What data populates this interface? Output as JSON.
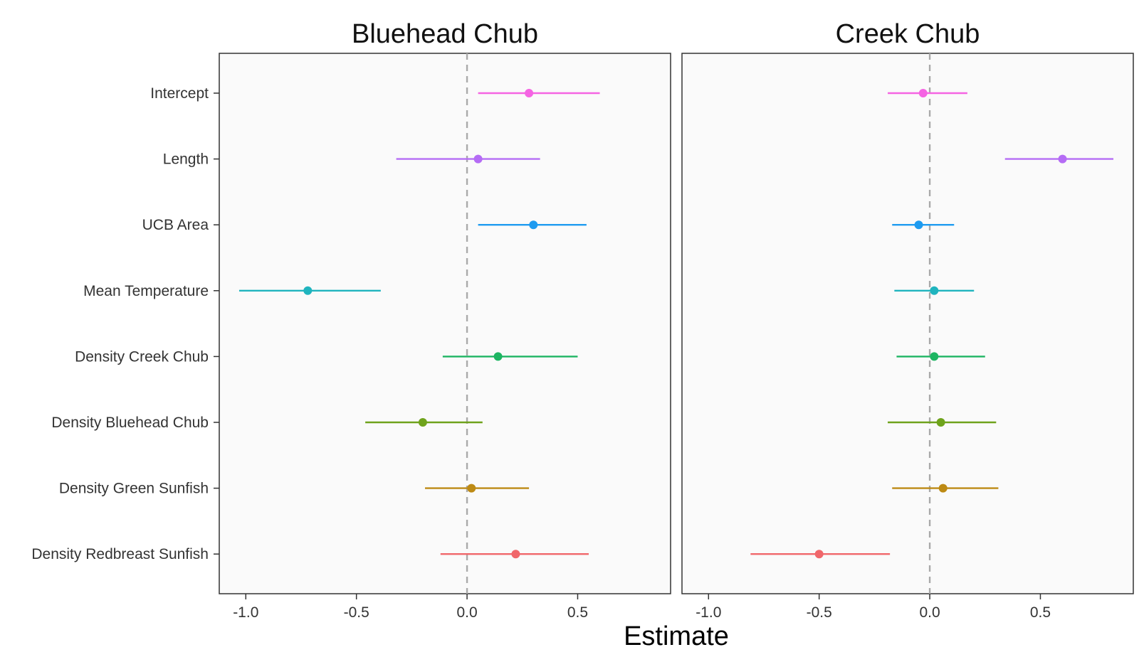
{
  "chart_data": {
    "type": "scatter",
    "subtype": "coefficient-plot",
    "xlabel": "Estimate",
    "ylabel": "",
    "xlim": [
      -1.12,
      0.92
    ],
    "x_ticks": [
      "-1.0",
      "-0.5",
      "0.0",
      "0.5"
    ],
    "x_tick_values": [
      -1.0,
      -0.5,
      0.0,
      0.5
    ],
    "reference_line": 0.0,
    "grid": false,
    "legend": "none",
    "categories": [
      "Intercept",
      "Length",
      "UCB Area",
      "Mean Temperature",
      "Density Creek Chub",
      "Density Bluehead Chub",
      "Density Green Sunfish",
      "Density Redbreast Sunfish"
    ],
    "category_colors": [
      "#F564E3",
      "#B56CF5",
      "#1E9BF0",
      "#1FB4BE",
      "#1DB562",
      "#6FA31C",
      "#BD8A14",
      "#F0676B"
    ],
    "panels": [
      {
        "title": "Bluehead Chub",
        "estimates": [
          0.28,
          0.05,
          0.3,
          -0.72,
          0.14,
          -0.2,
          0.02,
          0.22
        ],
        "lower": [
          0.05,
          -0.32,
          0.05,
          -1.03,
          -0.11,
          -0.46,
          -0.19,
          -0.12
        ],
        "upper": [
          0.6,
          0.33,
          0.54,
          -0.39,
          0.5,
          0.07,
          0.28,
          0.55
        ]
      },
      {
        "title": "Creek Chub",
        "estimates": [
          -0.03,
          0.6,
          -0.05,
          0.02,
          0.02,
          0.05,
          0.06,
          -0.5
        ],
        "lower": [
          -0.19,
          0.34,
          -0.17,
          -0.16,
          -0.15,
          -0.19,
          -0.17,
          -0.81
        ],
        "upper": [
          0.17,
          0.83,
          0.11,
          0.2,
          0.25,
          0.3,
          0.31,
          -0.18
        ]
      }
    ]
  }
}
